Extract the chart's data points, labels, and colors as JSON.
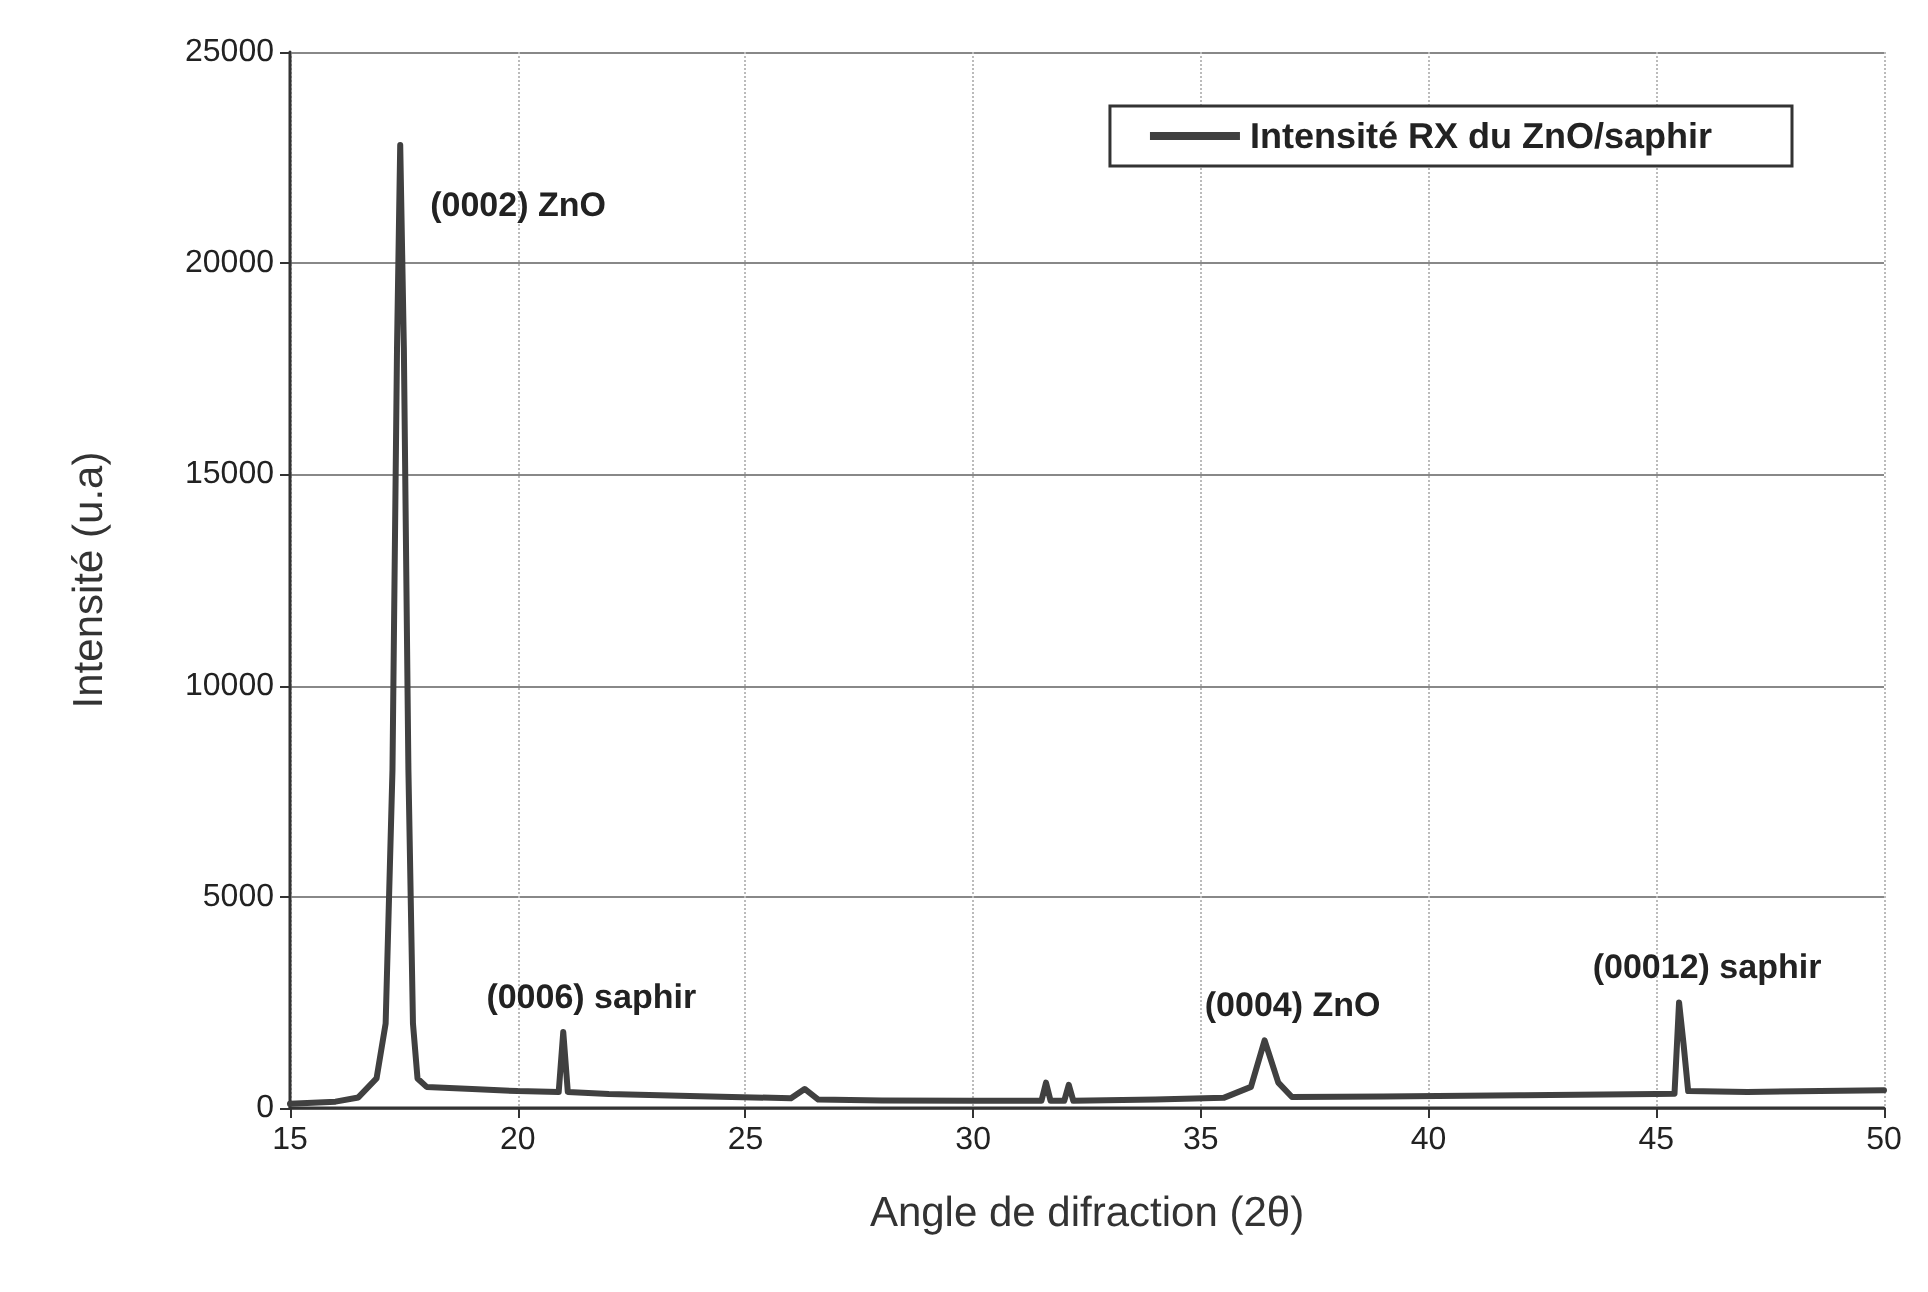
{
  "chart_data": {
    "type": "line",
    "xlabel": "Angle de difraction (2θ)",
    "ylabel": "Intensité (u.a)",
    "xlim": [
      15,
      50
    ],
    "xticks": [
      15,
      20,
      25,
      30,
      35,
      40,
      45,
      50
    ],
    "ylim": [
      0,
      25000
    ],
    "yticks": [
      0,
      5000,
      10000,
      15000,
      20000,
      25000
    ],
    "grid": true,
    "legend": "top right",
    "marker": "none",
    "line_style": "solid",
    "series": [
      {
        "name": "Intensité RX du ZnO/saphir",
        "color": "#404040",
        "x": [
          15,
          16,
          16.5,
          16.9,
          17.1,
          17.25,
          17.35,
          17.42,
          17.5,
          17.6,
          17.7,
          17.8,
          18,
          19,
          20,
          20.9,
          21,
          21.1,
          22,
          24,
          26,
          26.3,
          26.6,
          28,
          30,
          31.5,
          31.6,
          31.7,
          32,
          32.1,
          32.2,
          34,
          35.5,
          36.1,
          36.4,
          36.7,
          37,
          39,
          42,
          45,
          45.4,
          45.5,
          45.6,
          45.7,
          47,
          50
        ],
        "values": [
          100,
          150,
          250,
          700,
          2000,
          8000,
          18000,
          22800,
          18000,
          8000,
          2000,
          700,
          500,
          450,
          400,
          380,
          1800,
          380,
          330,
          280,
          230,
          450,
          200,
          180,
          170,
          170,
          600,
          170,
          170,
          550,
          170,
          200,
          240,
          500,
          1600,
          600,
          260,
          270,
          300,
          330,
          340,
          2500,
          1500,
          400,
          380,
          420
        ]
      }
    ],
    "annotations": [
      {
        "text": "(0002) ZnO",
        "x": 17.42,
        "y": 22800
      },
      {
        "text": "(0006) saphir",
        "x": 21,
        "y": 1800
      },
      {
        "text": "(0004) ZnO",
        "x": 36.4,
        "y": 1600
      },
      {
        "text": "(00012) saphir",
        "x": 45.5,
        "y": 2500
      }
    ]
  }
}
